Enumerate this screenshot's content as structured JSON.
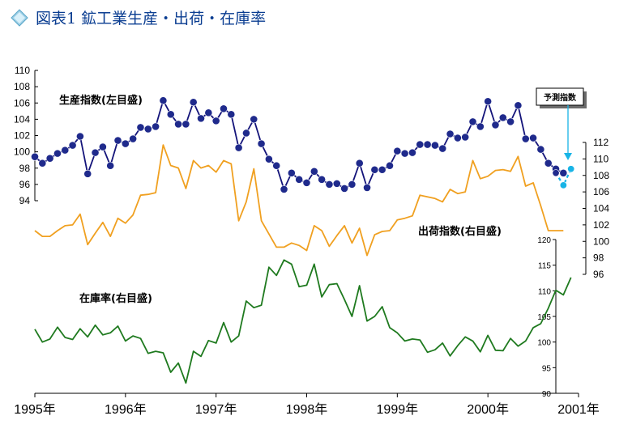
{
  "title": "図表1 鉱工業生産・出荷・在庫率",
  "colors": {
    "title": "#0a3d91",
    "production": "#14147a",
    "production_marker": "#1f2a8c",
    "shipments": "#f0a020",
    "inventory": "#1f7a1f",
    "forecast": "#18b4e6",
    "axis": "#000000"
  },
  "chart_data": {
    "type": "line",
    "x_tick_labels": [
      "1995年",
      "1996年",
      "1997年",
      "1998年",
      "1999年",
      "2000年",
      "2001年"
    ],
    "axes": {
      "left": {
        "ticks": [
          "94",
          "96",
          "98",
          "100",
          "102",
          "104",
          "106",
          "108",
          "110"
        ],
        "range": [
          94,
          110
        ]
      },
      "right_upper": {
        "ticks": [
          "96",
          "98",
          "100",
          "102",
          "104",
          "106",
          "108",
          "110",
          "112"
        ],
        "range": [
          96,
          112
        ]
      },
      "right_lower": {
        "ticks": [
          "90",
          "95",
          "100",
          "105",
          "110",
          "115",
          "120"
        ],
        "range": [
          90,
          120
        ]
      }
    },
    "annotations": {
      "production": "生産指数(左目盛)",
      "shipments": "出荷指数(右目盛)",
      "inventory": "在庫率(右目盛)",
      "forecast": "予測指数"
    },
    "series": [
      {
        "key": "production",
        "axis": "left",
        "x_start": 1995.0,
        "x_step": 0.08333,
        "markers": true,
        "values": [
          99.4,
          98.6,
          99.2,
          99.8,
          100.2,
          100.8,
          101.9,
          97.3,
          99.9,
          100.6,
          98.3,
          101.4,
          101.0,
          101.6,
          103.0,
          102.8,
          103.1,
          106.3,
          104.6,
          103.4,
          103.4,
          106.1,
          104.1,
          104.8,
          103.8,
          105.3,
          104.6,
          100.5,
          102.3,
          104.0,
          101.0,
          99.1,
          98.3,
          95.4,
          97.4,
          96.6,
          96.2,
          97.6,
          96.6,
          96.0,
          96.1,
          95.5,
          96.0,
          98.6,
          95.6,
          97.8,
          97.8,
          98.3,
          100.1,
          99.8,
          99.9,
          100.9,
          100.9,
          100.8,
          100.4,
          102.2,
          101.7,
          101.8,
          103.7,
          103.1,
          106.2,
          103.3,
          104.2,
          103.7,
          105.7,
          101.6,
          101.7,
          100.3,
          98.6,
          97.9,
          97.4
        ]
      },
      {
        "key": "forecast",
        "axis": "left",
        "x_start": 2000.75,
        "x_step": 0.08333,
        "markers": true,
        "values": [
          97.4,
          95.9,
          97.9
        ]
      },
      {
        "key": "shipments",
        "axis": "right_upper",
        "x_start": 1995.0,
        "x_step": 0.08333,
        "markers": false,
        "values": [
          101.3,
          100.6,
          100.6,
          101.3,
          101.9,
          102.0,
          103.3,
          99.6,
          101.0,
          102.3,
          100.6,
          102.8,
          102.2,
          103.2,
          105.6,
          105.7,
          105.9,
          111.7,
          109.2,
          108.9,
          106.4,
          109.8,
          108.9,
          109.2,
          108.4,
          109.8,
          109.4,
          102.5,
          104.8,
          108.8,
          102.5,
          100.9,
          99.3,
          99.3,
          99.8,
          99.5,
          98.9,
          101.9,
          101.3,
          99.4,
          100.7,
          101.9,
          99.8,
          101.6,
          98.3,
          100.8,
          101.2,
          101.3,
          102.6,
          102.8,
          103.1,
          105.6,
          105.4,
          105.2,
          104.8,
          106.3,
          105.8,
          106.0,
          109.8,
          107.6,
          107.9,
          108.6,
          108.7,
          108.5,
          110.3,
          106.7,
          107.1,
          104.3,
          101.3,
          101.3,
          101.3
        ]
      },
      {
        "key": "inventory",
        "axis": "right_lower",
        "x_start": 1995.0,
        "x_step": 0.08333,
        "markers": false,
        "values": [
          102.5,
          100.0,
          100.6,
          102.9,
          100.9,
          100.5,
          102.6,
          101.0,
          103.3,
          101.4,
          101.8,
          103.1,
          100.2,
          101.2,
          100.7,
          97.8,
          98.2,
          97.9,
          94.1,
          95.9,
          92.0,
          98.2,
          97.2,
          100.3,
          99.8,
          103.8,
          100.0,
          101.2,
          108.0,
          106.7,
          107.2,
          114.6,
          113.0,
          116.0,
          115.2,
          110.8,
          111.1,
          115.2,
          108.8,
          111.2,
          111.4,
          108.3,
          105.0,
          111.0,
          104.1,
          105.0,
          106.9,
          102.8,
          101.8,
          100.2,
          100.6,
          100.4,
          98.0,
          98.5,
          99.8,
          97.3,
          99.3,
          101.0,
          100.2,
          98.1,
          101.3,
          98.4,
          98.3,
          100.7,
          99.2,
          100.2,
          102.8,
          103.6,
          106.6,
          110.1,
          109.2,
          112.6
        ]
      }
    ]
  }
}
